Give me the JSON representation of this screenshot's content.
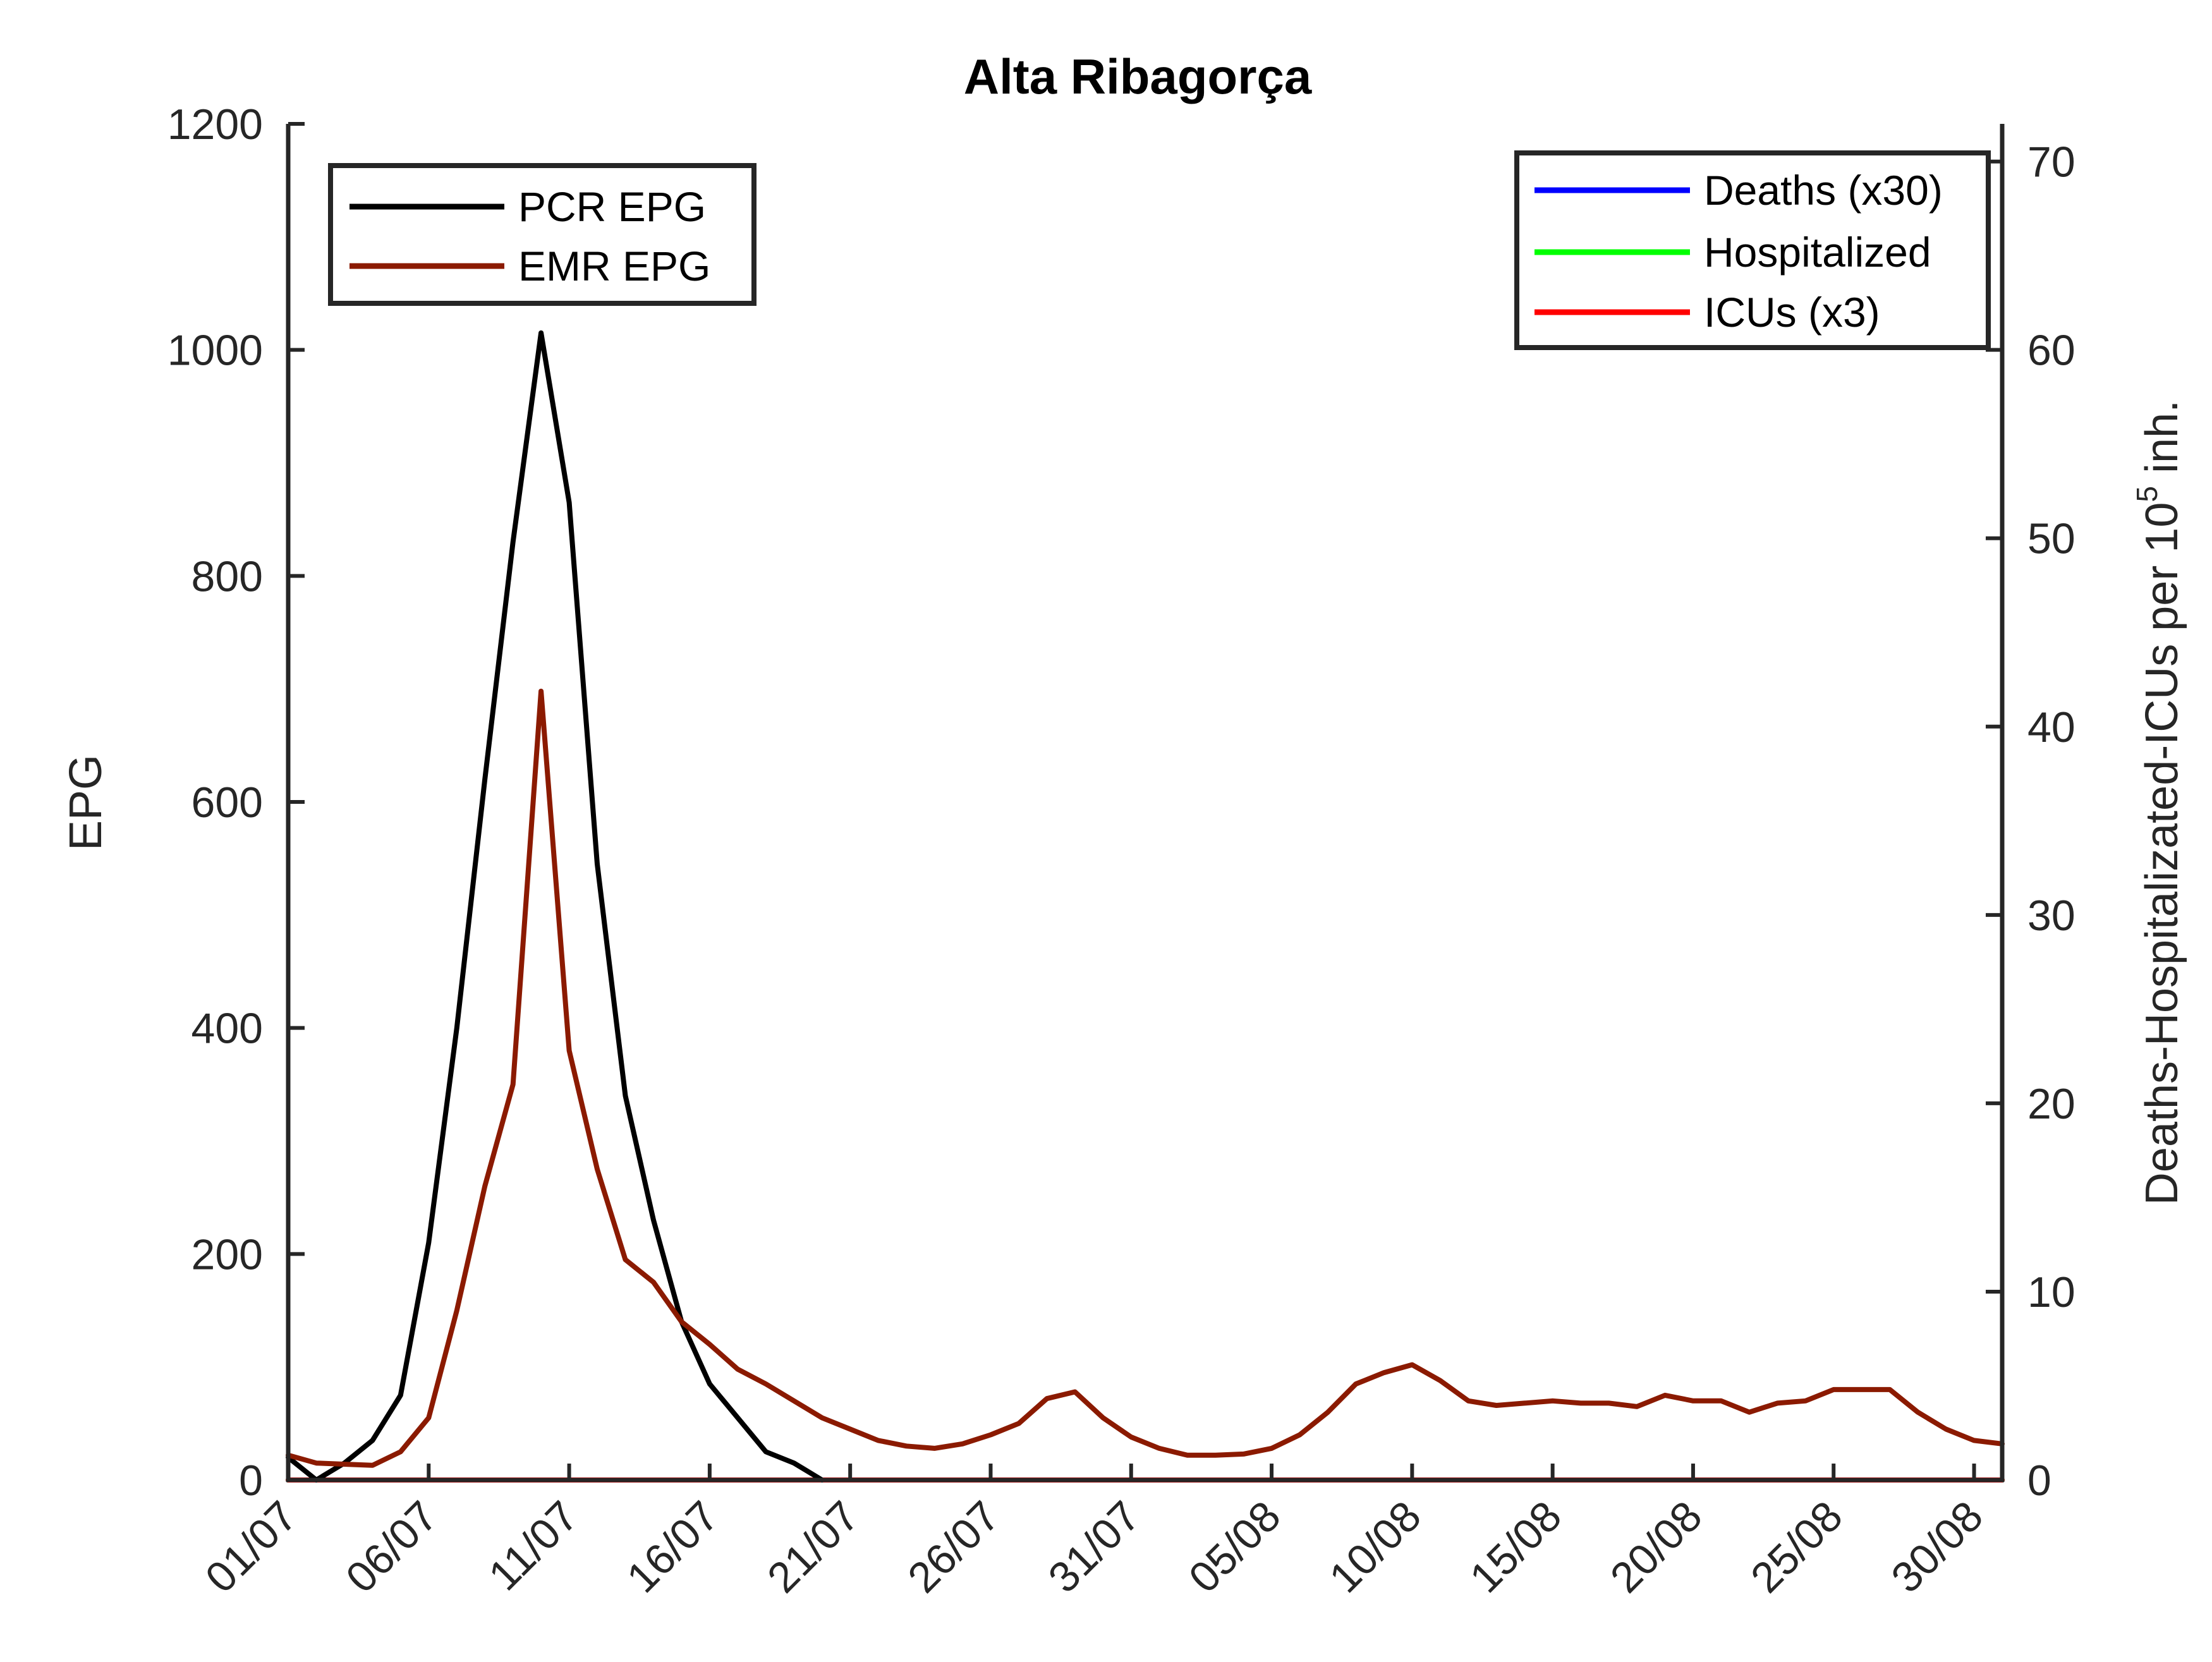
{
  "chart_data": {
    "type": "line",
    "title": "Alta Ribagorça",
    "x_tick_labels": [
      "01/07",
      "06/07",
      "11/07",
      "16/07",
      "21/07",
      "26/07",
      "31/07",
      "05/08",
      "10/08",
      "15/08",
      "20/08",
      "25/08",
      "30/08"
    ],
    "x_range_days": [
      0,
      61
    ],
    "y_left": {
      "label": "EPG",
      "lim": [
        0,
        1200
      ],
      "ticks": [
        0,
        200,
        400,
        600,
        800,
        1000,
        1200
      ]
    },
    "y_right": {
      "label_main": "Deaths-Hospitalizated-ICUs per 10",
      "label_sup": "5",
      "label_tail": " inh.",
      "lim": [
        0,
        72
      ],
      "ticks": [
        0,
        10,
        20,
        30,
        40,
        50,
        60,
        70
      ]
    },
    "series": [
      {
        "name": "PCR EPG",
        "axis": "left",
        "color": "#000000",
        "x": [
          0,
          1,
          2,
          3,
          4,
          5,
          6,
          7,
          8,
          9,
          10,
          11,
          12,
          13,
          14,
          15,
          16,
          17,
          18,
          19
        ],
        "values": [
          20,
          0,
          15,
          35,
          75,
          210,
          400,
          620,
          830,
          1015,
          865,
          545,
          340,
          230,
          140,
          85,
          55,
          25,
          15,
          0
        ]
      },
      {
        "name": "EMR EPG",
        "axis": "left",
        "color": "#8B1A00",
        "x": [
          0,
          1,
          2,
          3,
          4,
          5,
          6,
          7,
          8,
          9,
          10,
          11,
          12,
          13,
          14,
          15,
          16,
          17,
          18,
          19,
          20,
          21,
          22,
          23,
          24,
          25,
          26,
          27,
          28,
          29,
          30,
          31,
          32,
          33,
          34,
          35,
          36,
          37,
          38,
          39,
          40,
          41,
          42,
          43,
          44,
          45,
          46,
          47,
          48,
          49,
          50,
          51,
          52,
          53,
          54,
          55,
          56,
          57,
          58,
          59,
          60,
          61
        ],
        "values": [
          22,
          15,
          14,
          13,
          25,
          55,
          150,
          260,
          350,
          698,
          380,
          275,
          195,
          175,
          140,
          120,
          98,
          85,
          70,
          55,
          45,
          35,
          30,
          28,
          32,
          40,
          50,
          72,
          78,
          55,
          38,
          28,
          22,
          22,
          23,
          28,
          40,
          60,
          85,
          95,
          102,
          88,
          70,
          66,
          68,
          70,
          68,
          68,
          65,
          75,
          70,
          70,
          60,
          68,
          70,
          80,
          80,
          80,
          60,
          45,
          35,
          32
        ]
      },
      {
        "name": "Deaths (x30)",
        "axis": "right",
        "color": "#0000FF",
        "x": [
          0,
          61
        ],
        "values": [
          0,
          0
        ]
      },
      {
        "name": "Hospitalized",
        "axis": "right",
        "color": "#00FF00",
        "x": [
          0,
          61
        ],
        "values": [
          0,
          0
        ]
      },
      {
        "name": "ICUs (x3)",
        "axis": "right",
        "color": "#FF0000",
        "x": [
          0,
          61
        ],
        "values": [
          0,
          0
        ]
      }
    ],
    "legend_left": [
      "PCR EPG",
      "EMR EPG"
    ],
    "legend_right": [
      "Deaths (x30)",
      "Hospitalized",
      "ICUs (x3)"
    ],
    "grid": false
  }
}
